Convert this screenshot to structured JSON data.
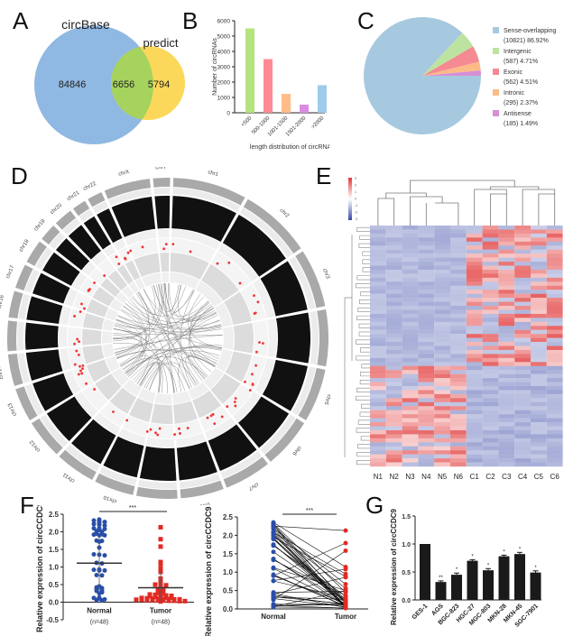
{
  "panel_labels": {
    "A": "A",
    "B": "B",
    "C": "C",
    "D": "D",
    "E": "E",
    "F": "F",
    "G": "G"
  },
  "colors": {
    "circbase": "#8fb8e2",
    "predict": "#fcd85a",
    "overlap": "#a6d25e",
    "normal_dot": "#2a4fa8",
    "tumor_dot": "#e02b24",
    "bar_dark": "#1a1a1a"
  },
  "chart_data": [
    {
      "id": "A",
      "type": "venn",
      "sets": [
        {
          "name": "circBase",
          "only": 84846,
          "color": "#8fb8e2"
        },
        {
          "name": "predict",
          "only": 5794,
          "color": "#fcd85a"
        }
      ],
      "intersection": 6656,
      "intersection_color": "#a6d25e"
    },
    {
      "id": "B",
      "type": "bar",
      "title": "",
      "xlabel": "length distribution of circRNAs (nt)",
      "ylabel": "Number of circRNAs",
      "categories": [
        "<500",
        "500-1000",
        "1001-1500",
        "1501-2000",
        ">2000"
      ],
      "values": [
        5500,
        3500,
        1230,
        530,
        1800
      ],
      "colors": [
        "#b3e47e",
        "#ff8a94",
        "#ffbc88",
        "#d98de0",
        "#9ecbea"
      ],
      "ylim": [
        0,
        6000
      ],
      "yticks": [
        0,
        1000,
        2000,
        3000,
        4000,
        5000,
        6000
      ]
    },
    {
      "id": "C",
      "type": "pie",
      "slices": [
        {
          "label": "Sense-overlapping",
          "count": 10821,
          "percent": 86.92,
          "color": "#a6c9e0",
          "detail": "(10821)  86.92%"
        },
        {
          "label": "Intergenic",
          "count": 587,
          "percent": 4.71,
          "color": "#bde3a0",
          "detail": "(587)  4.71%"
        },
        {
          "label": "Exonic",
          "count": 562,
          "percent": 4.51,
          "color": "#f58a92",
          "detail": "(562)  4.51%"
        },
        {
          "label": "Intronic",
          "count": 295,
          "percent": 2.37,
          "color": "#fbbb87",
          "detail": "(295)  2.37%"
        },
        {
          "label": "Antisense",
          "count": 185,
          "percent": 1.49,
          "color": "#d68fd6",
          "detail": "(185)  1.49%"
        }
      ],
      "legend": "right"
    },
    {
      "id": "D",
      "type": "circos",
      "chromosomes": [
        "chr1",
        "chr2",
        "chr3",
        "chr4",
        "chr5",
        "chr6",
        "chr7",
        "chr8",
        "chr9",
        "chr10",
        "chr11",
        "chr12",
        "chr13",
        "chr14",
        "chr15",
        "chr16",
        "chr17",
        "chr18",
        "chr19",
        "chr20",
        "chr21",
        "chr22",
        "chrX",
        "chrY"
      ]
    },
    {
      "id": "E",
      "type": "heatmap",
      "columns": [
        "N1",
        "N2",
        "N3",
        "N4",
        "N5",
        "N6",
        "C1",
        "C2",
        "C3",
        "C4",
        "C5",
        "C6"
      ],
      "colorbar": {
        "min": -3,
        "max": 3,
        "ticks": [
          3,
          2,
          1,
          0,
          -1,
          -2,
          -3
        ],
        "low": "#3a4aa8",
        "mid": "#ffffff",
        "high": "#e23a3a"
      },
      "row_count": 60
    },
    {
      "id": "F1",
      "type": "scatter",
      "ylabel": "Relative expression of circCCDC9",
      "categories": [
        "Normal",
        "Tumor"
      ],
      "sublabels": [
        "(n=48)",
        "(n=48)"
      ],
      "ylim": [
        -0.5,
        2.5
      ],
      "yticks": [
        "-0.5",
        "0.0",
        "0.5",
        "1.0",
        "1.5",
        "2.0",
        "2.5"
      ],
      "significance": "***",
      "series": [
        {
          "name": "Normal",
          "mean": 1.11,
          "sd": 0.77,
          "values": [
            2.35,
            2.32,
            2.3,
            2.28,
            2.25,
            2.22,
            2.2,
            2.18,
            2.1,
            2.1,
            2.08,
            2.05,
            2.02,
            2.0,
            1.95,
            1.93,
            1.92,
            1.9,
            1.9,
            1.75,
            1.74,
            1.72,
            1.55,
            1.36,
            1.35,
            1.33,
            1.12,
            1.1,
            0.93,
            0.92,
            0.9,
            0.9,
            0.77,
            0.76,
            0.45,
            0.42,
            0.4,
            0.37,
            0.33,
            0.32,
            0.28,
            0.25,
            0.13,
            0.12,
            0.1,
            0.08,
            0.06,
            0.05
          ]
        },
        {
          "name": "Tumor",
          "mean": 0.41,
          "sd": 0.48,
          "values": [
            2.13,
            1.79,
            1.58,
            1.14,
            1.08,
            0.95,
            0.88,
            0.86,
            0.67,
            0.56,
            0.5,
            0.49,
            0.48,
            0.45,
            0.36,
            0.35,
            0.3,
            0.26,
            0.24,
            0.22,
            0.21,
            0.2,
            0.19,
            0.18,
            0.17,
            0.15,
            0.14,
            0.13,
            0.13,
            0.12,
            0.11,
            0.1,
            0.1,
            0.09,
            0.09,
            0.08,
            0.08,
            0.07,
            0.07,
            0.06,
            0.06,
            0.05,
            0.05,
            0.04,
            0.04,
            0.03,
            0.03,
            0.02
          ]
        }
      ]
    },
    {
      "id": "F2",
      "type": "paired-line",
      "ylabel": "Relative expression of circCCDC9",
      "categories": [
        "Normal",
        "Tumor"
      ],
      "ylim": [
        0,
        2.5
      ],
      "yticks": [
        "0.0",
        "0.5",
        "1.0",
        "1.5",
        "2.0",
        "2.5"
      ],
      "significance": "***"
    },
    {
      "id": "G",
      "type": "bar",
      "ylabel": "Relative expression of circCCDC9",
      "categories": [
        "GES-1",
        "AGS",
        "BGC-823",
        "HGC-27",
        "MGC-803",
        "MKN-28",
        "MKN-45",
        "SGC-7901"
      ],
      "values": [
        1.0,
        0.32,
        0.45,
        0.7,
        0.53,
        0.78,
        0.82,
        0.49
      ],
      "errors": [
        0,
        0.02,
        0.03,
        0.02,
        0.03,
        0.02,
        0.03,
        0.03
      ],
      "significance": [
        "",
        "**",
        "*",
        "*",
        "*",
        "*",
        "*",
        "*"
      ],
      "ylim": [
        0,
        1.5
      ],
      "yticks": [
        "0.0",
        "0.5",
        "1.0",
        "1.5"
      ]
    }
  ]
}
